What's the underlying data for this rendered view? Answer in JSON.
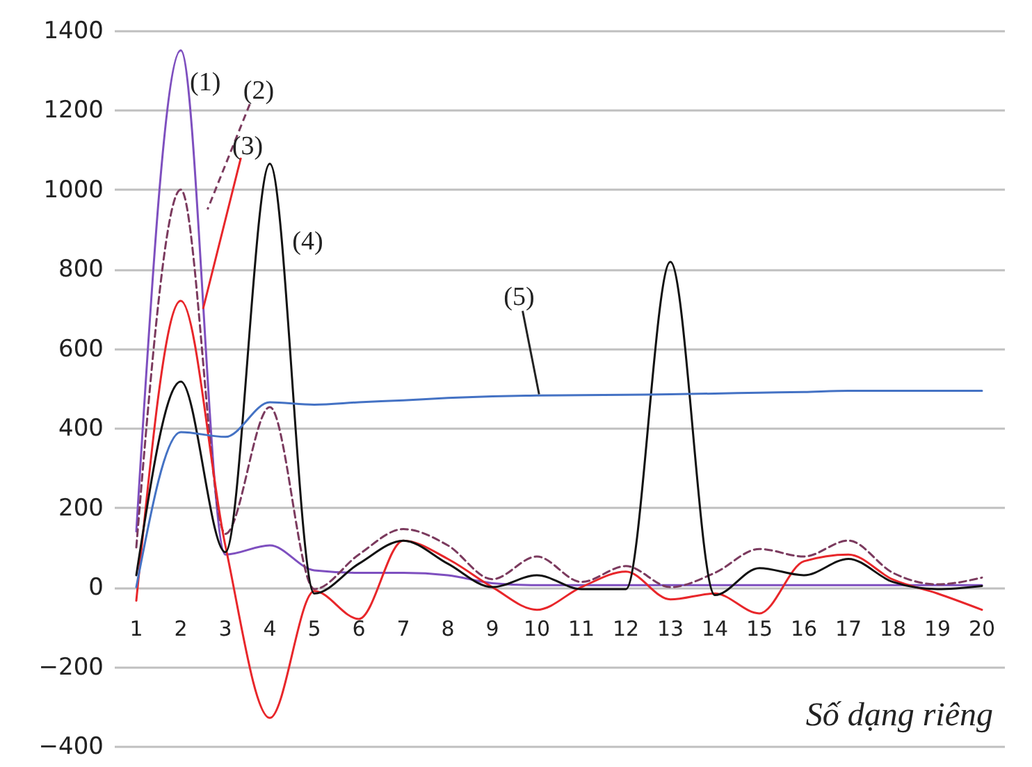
{
  "chart_data": {
    "type": "line",
    "xlabel": "Số dạng riêng",
    "x": [
      1,
      2,
      3,
      4,
      5,
      6,
      7,
      8,
      9,
      10,
      11,
      12,
      13,
      14,
      15,
      16,
      17,
      18,
      19,
      20
    ],
    "xlim": [
      0.5,
      20.5
    ],
    "xticks": [
      1,
      2,
      3,
      4,
      5,
      6,
      7,
      8,
      9,
      10,
      11,
      12,
      13,
      14,
      15,
      16,
      17,
      18,
      19,
      20
    ],
    "ylim": [
      -400,
      1400
    ],
    "yticks": [
      -400,
      -200,
      0,
      200,
      400,
      600,
      800,
      1000,
      1200,
      1400
    ],
    "grid": "y",
    "legend": false,
    "marker": "none",
    "series": [
      {
        "name": "(1)",
        "color": "#7e4fbf",
        "line_style": "solid",
        "values": [
          140,
          1350,
          82,
          105,
          42,
          36,
          36,
          30,
          10,
          5,
          5,
          5,
          5,
          5,
          5,
          5,
          5,
          5,
          5,
          5
        ]
      },
      {
        "name": "(2)",
        "color": "#7b3a5e",
        "line_style": "dashed",
        "values": [
          100,
          1000,
          134,
          453,
          -5,
          82,
          146,
          105,
          20,
          77,
          13,
          53,
          0,
          36,
          96,
          77,
          117,
          36,
          7,
          24
        ]
      },
      {
        "name": "(3)",
        "color": "#e8262a",
        "line_style": "solid",
        "values": [
          -34,
          720,
          105,
          -329,
          -10,
          -80,
          117,
          71,
          0,
          -57,
          0,
          39,
          -31,
          -16,
          -66,
          65,
          82,
          19,
          -16,
          -57
        ]
      },
      {
        "name": "(4)",
        "color": "#111111",
        "line_style": "solid",
        "values": [
          30,
          517,
          88,
          1065,
          -16,
          59,
          117,
          59,
          0,
          30,
          -5,
          -5,
          818,
          -20,
          48,
          30,
          71,
          13,
          -5,
          3
        ]
      },
      {
        "name": "(5)",
        "color": "#4472c4",
        "line_style": "solid",
        "values": [
          0,
          390,
          378,
          465,
          459,
          465,
          470,
          476,
          480,
          482,
          483,
          484,
          485,
          487,
          489,
          491,
          494,
          494,
          494,
          494
        ]
      }
    ]
  }
}
